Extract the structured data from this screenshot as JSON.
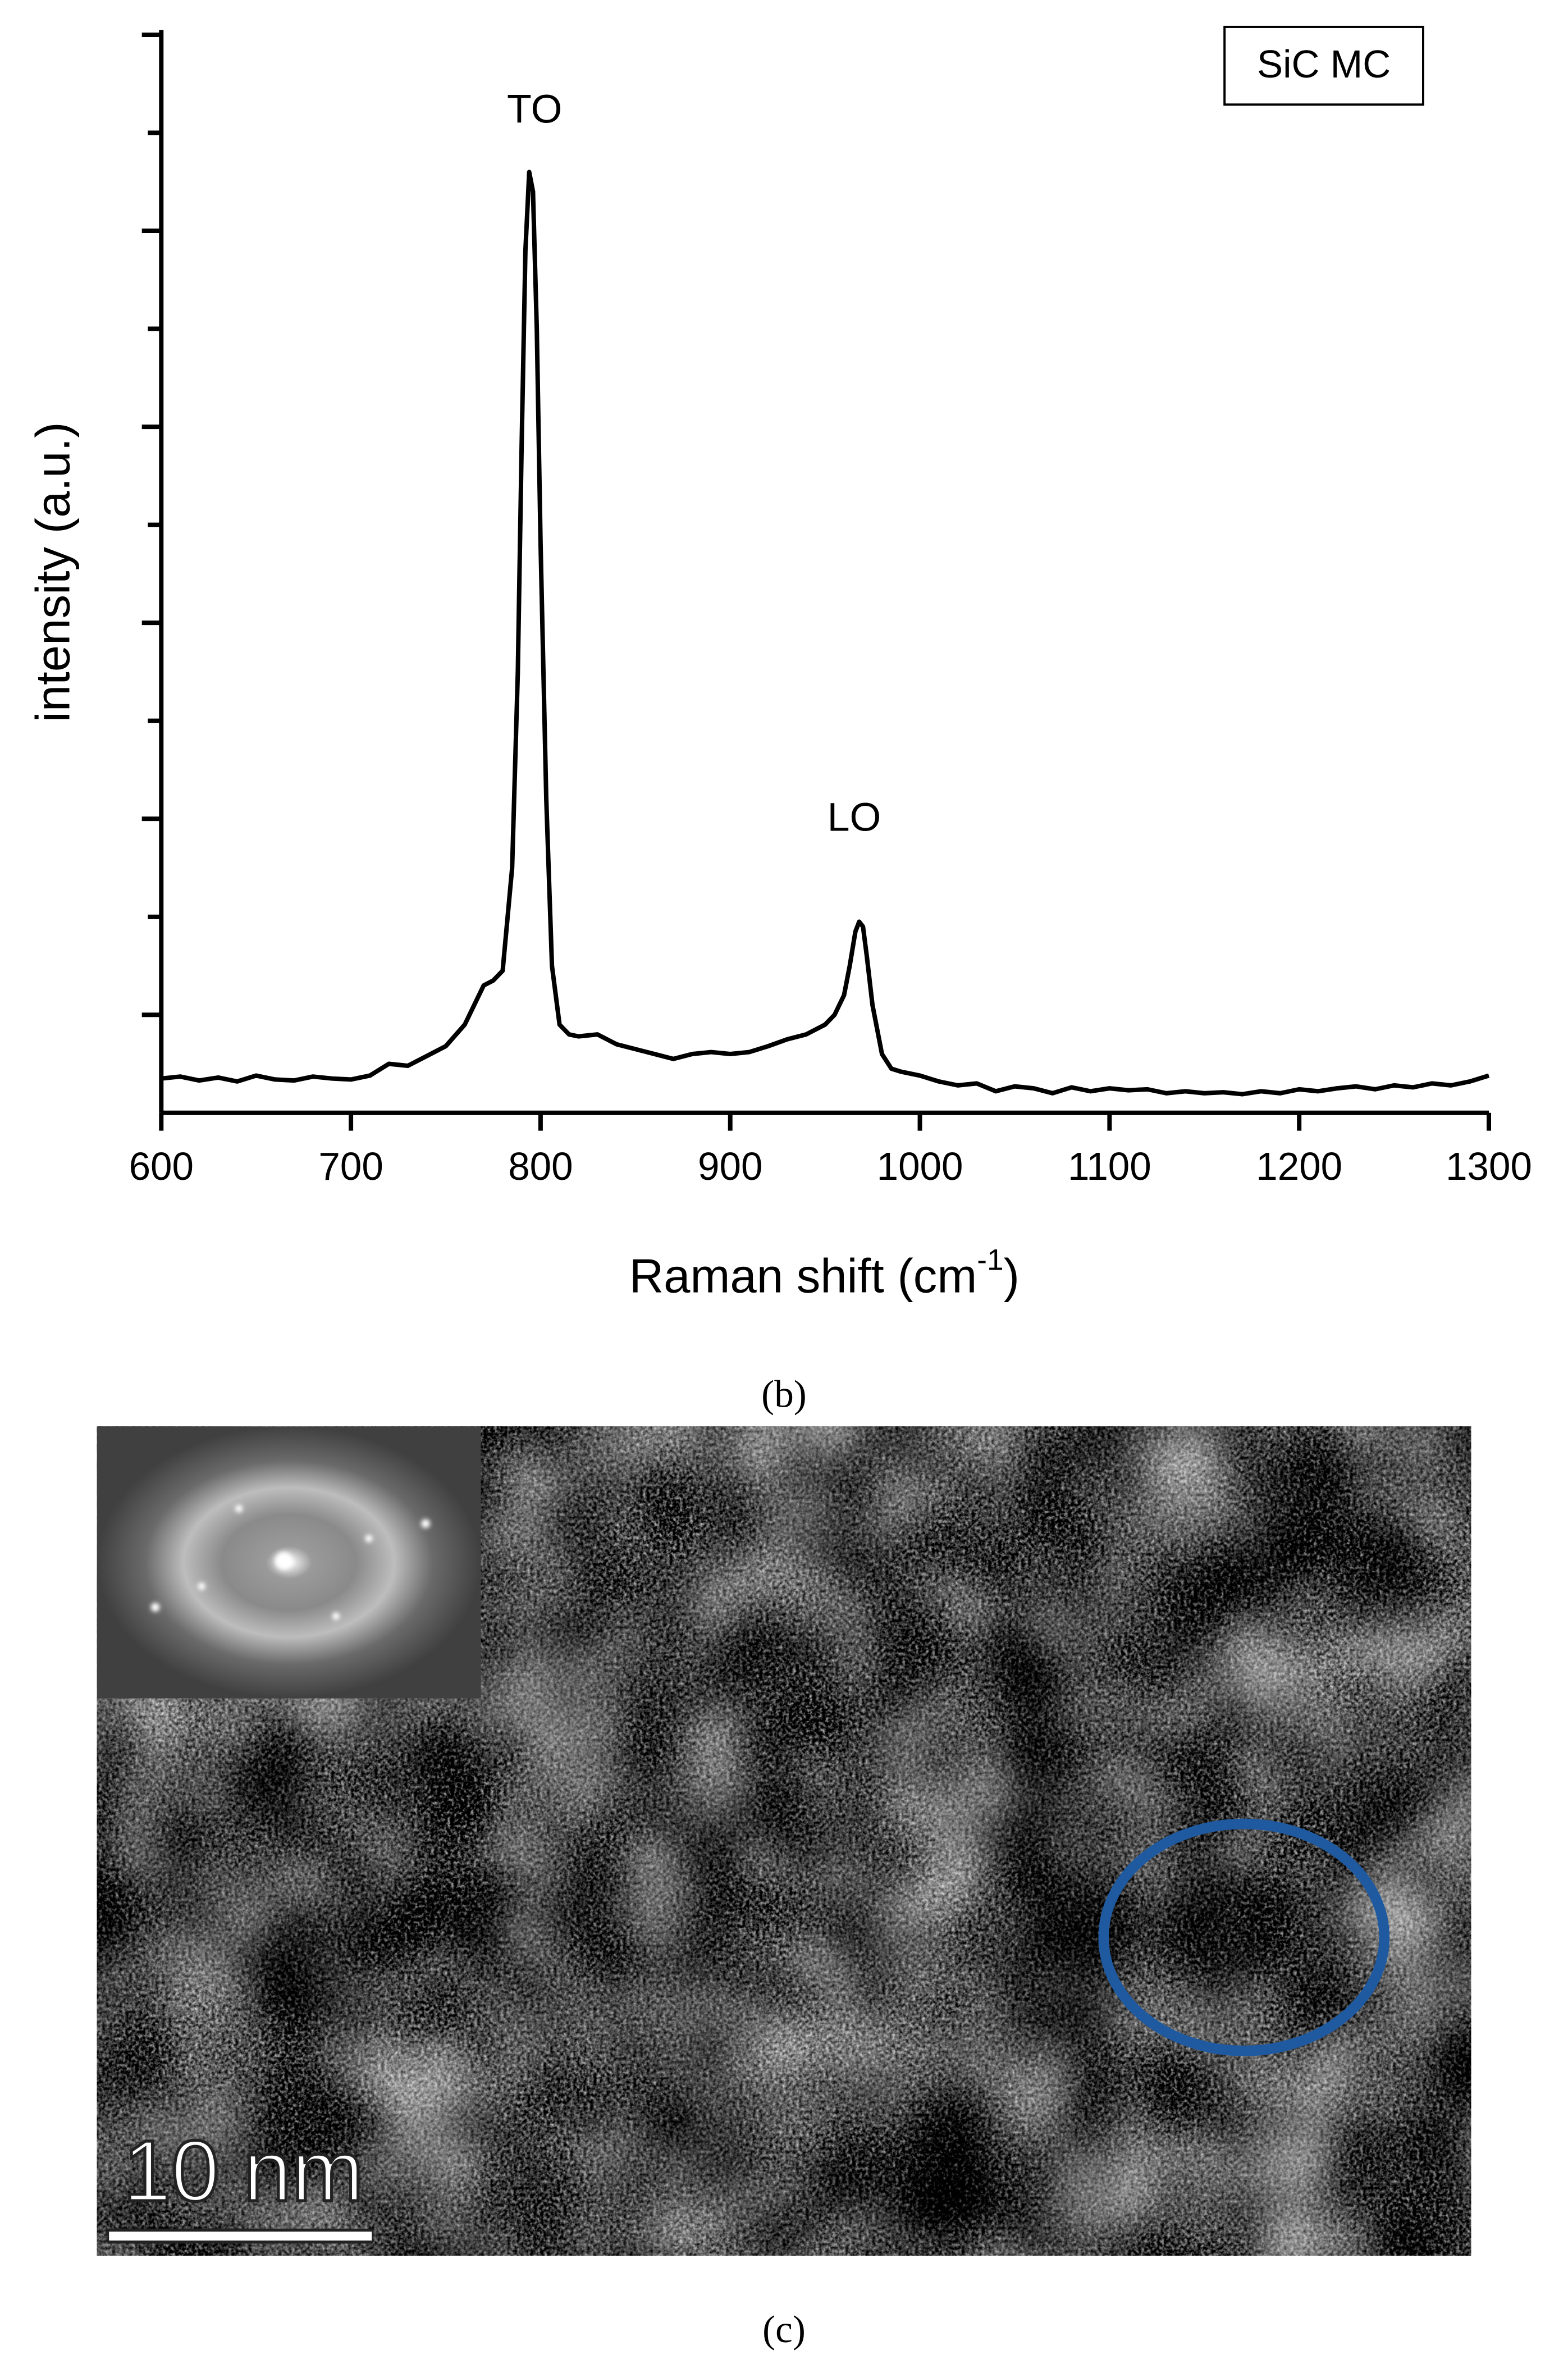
{
  "chart_data": {
    "type": "line",
    "x": [
      600,
      610,
      620,
      630,
      640,
      650,
      660,
      670,
      680,
      690,
      700,
      710,
      720,
      730,
      740,
      750,
      760,
      770,
      775,
      780,
      785,
      788,
      790,
      792,
      794,
      796,
      798,
      800,
      803,
      806,
      810,
      815,
      820,
      830,
      840,
      850,
      860,
      870,
      880,
      890,
      900,
      910,
      920,
      930,
      940,
      950,
      955,
      960,
      963,
      966,
      968,
      970,
      972,
      975,
      980,
      985,
      990,
      1000,
      1010,
      1020,
      1030,
      1040,
      1050,
      1060,
      1070,
      1080,
      1090,
      1100,
      1110,
      1120,
      1130,
      1140,
      1150,
      1160,
      1170,
      1180,
      1190,
      1200,
      1210,
      1220,
      1230,
      1240,
      1250,
      1260,
      1270,
      1280,
      1290,
      1300
    ],
    "values": [
      0.35,
      0.37,
      0.33,
      0.36,
      0.32,
      0.38,
      0.34,
      0.33,
      0.37,
      0.35,
      0.34,
      0.38,
      0.5,
      0.48,
      0.58,
      0.68,
      0.9,
      1.3,
      1.35,
      1.45,
      2.5,
      4.5,
      6.8,
      8.8,
      9.6,
      9.4,
      8.0,
      5.8,
      3.2,
      1.5,
      0.9,
      0.8,
      0.78,
      0.8,
      0.7,
      0.65,
      0.6,
      0.55,
      0.6,
      0.62,
      0.6,
      0.62,
      0.68,
      0.75,
      0.8,
      0.9,
      1.0,
      1.2,
      1.5,
      1.85,
      1.95,
      1.9,
      1.6,
      1.1,
      0.6,
      0.45,
      0.42,
      0.38,
      0.32,
      0.28,
      0.3,
      0.22,
      0.27,
      0.25,
      0.2,
      0.26,
      0.22,
      0.25,
      0.23,
      0.24,
      0.2,
      0.22,
      0.2,
      0.21,
      0.19,
      0.22,
      0.2,
      0.24,
      0.22,
      0.25,
      0.27,
      0.24,
      0.28,
      0.26,
      0.3,
      0.28,
      0.32,
      0.38
    ],
    "color": "#000000",
    "xlim": [
      600,
      1300
    ],
    "xticks": [
      600,
      700,
      800,
      900,
      1000,
      1100,
      1200,
      1300
    ],
    "ylim": [
      0,
      11.05
    ],
    "yticks": [
      1,
      2,
      3,
      4,
      5,
      6,
      7,
      8,
      9,
      10,
      11
    ],
    "y_label": "intensity (a.u.)",
    "x_label": [
      "Raman shift (cm",
      "-1",
      ")"
    ],
    "annotations": [
      "TO",
      "LO"
    ],
    "sample_label": "SiC MC"
  },
  "captions": [
    "(b)",
    "(c)"
  ],
  "scale_bar": "10 nm"
}
